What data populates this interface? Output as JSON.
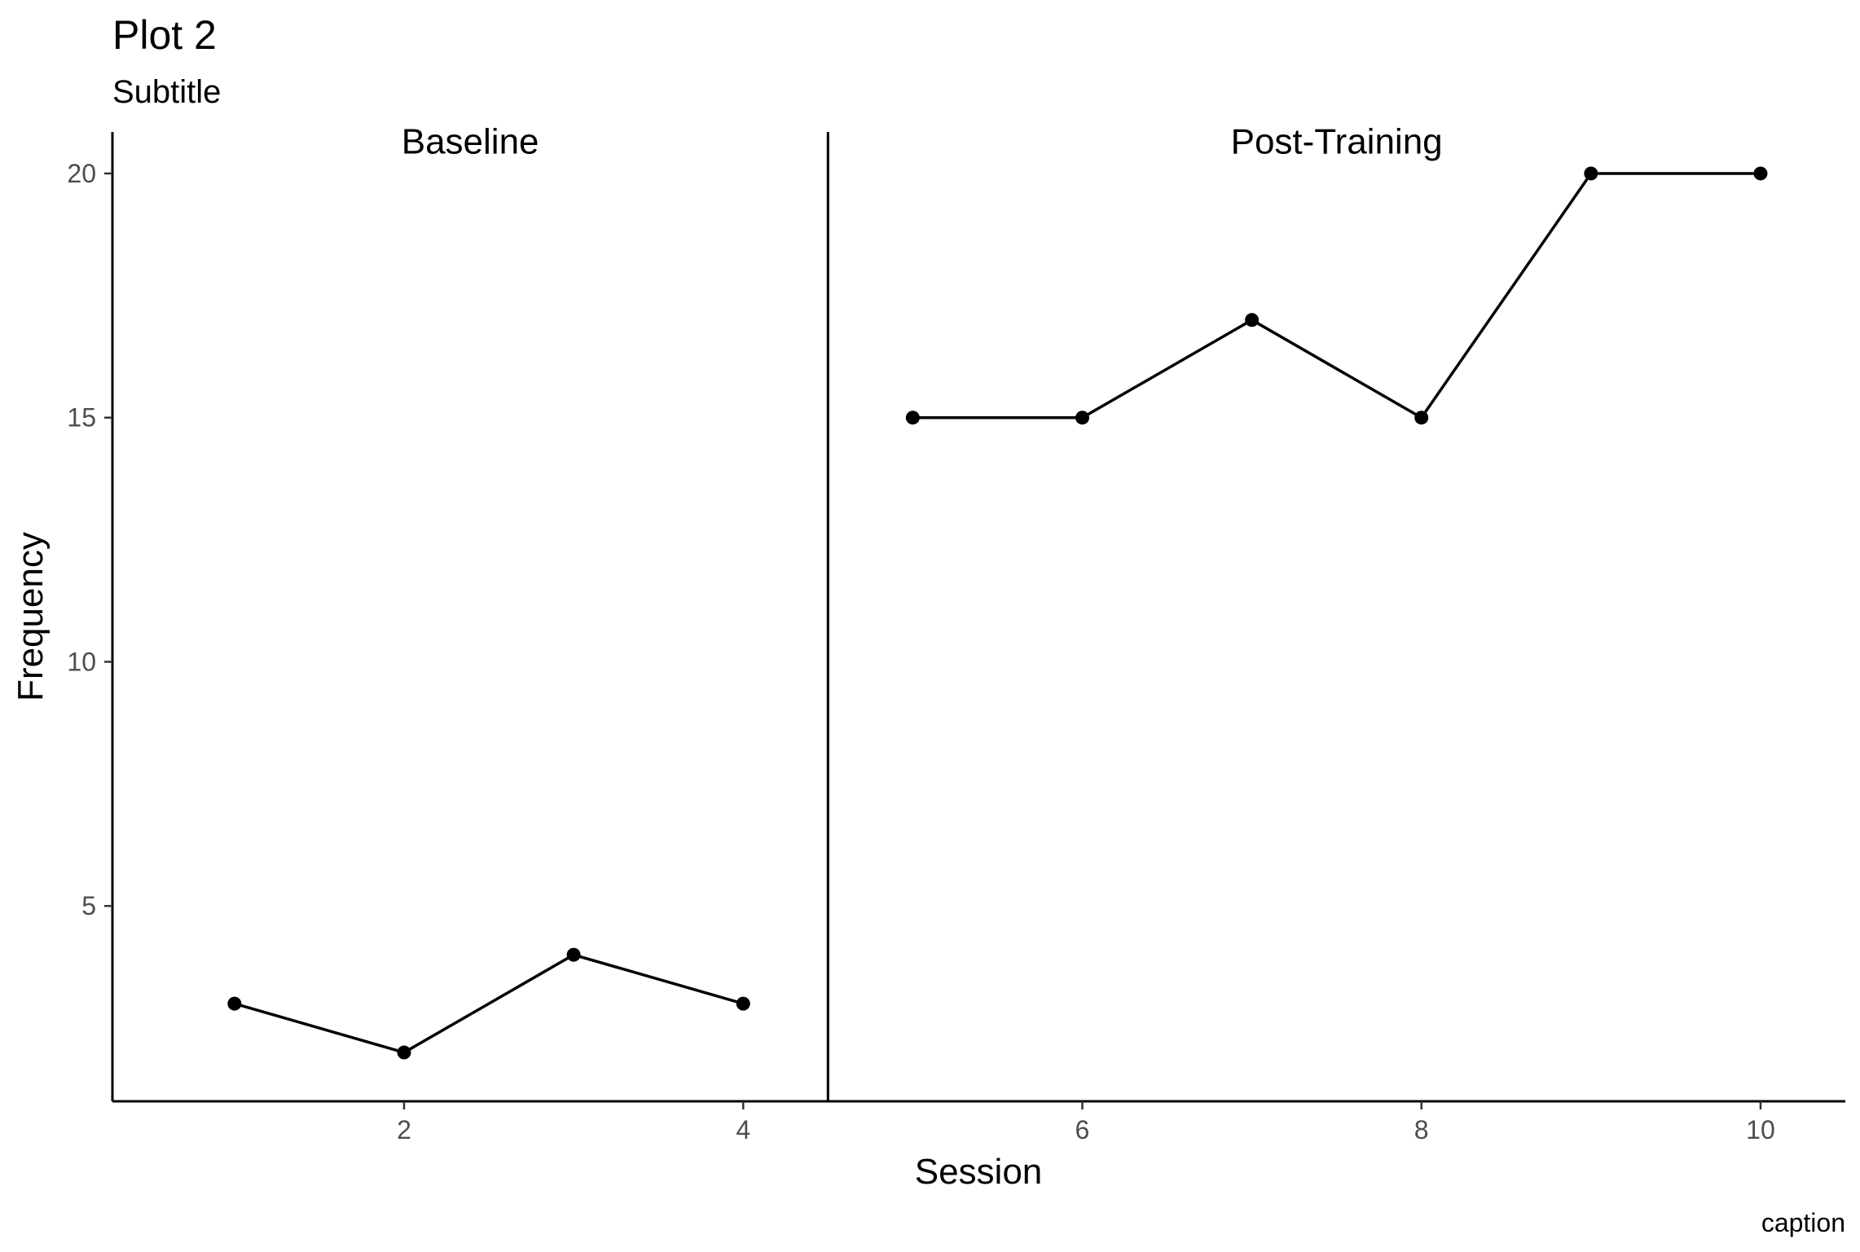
{
  "chart_data": {
    "type": "line",
    "title": "Plot 2",
    "subtitle": "Subtitle",
    "caption": "caption",
    "xlabel": "Session",
    "ylabel": "Frequency",
    "xlim": [
      0.28,
      10.5
    ],
    "ylim": [
      1,
      20.85
    ],
    "x_ticks": [
      2,
      4,
      6,
      8,
      10
    ],
    "y_ticks": [
      5,
      10,
      15,
      20
    ],
    "grid": false,
    "phase_change_lines": [
      4.5
    ],
    "phases": [
      {
        "name": "Baseline",
        "x": [
          1,
          2,
          3,
          4
        ],
        "y": [
          3,
          2,
          4,
          3
        ]
      },
      {
        "name": "Post-Training",
        "x": [
          5,
          6,
          7,
          8,
          9,
          10
        ],
        "y": [
          15,
          15,
          17,
          15,
          20,
          20
        ]
      }
    ],
    "colors": {
      "line": "#000000",
      "point": "#000000",
      "tick_text": "#4d4d4d"
    }
  }
}
